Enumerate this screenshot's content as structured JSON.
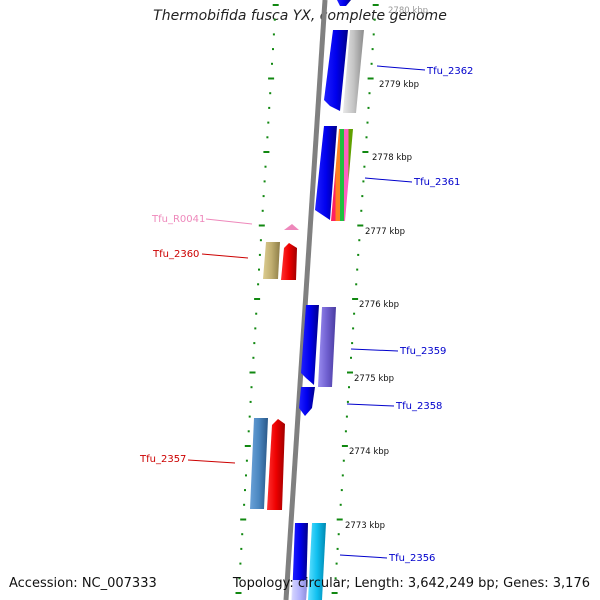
{
  "title": "Thermobifida fusca YX, complete genome",
  "footer": {
    "accession": "Accession: NC_007333",
    "summary": "Topology: circular; Length: 3,642,249 bp; Genes: 3,176"
  },
  "scale_labels": [
    "2780 kbp",
    "2779 kbp",
    "2778 kbp",
    "2777 kbp",
    "2776 kbp",
    "2775 kbp",
    "2774 kbp",
    "2773 kbp"
  ],
  "genes": [
    {
      "name": "Tfu_2362",
      "strand": "+",
      "color": "#0000cc"
    },
    {
      "name": "Tfu_2361",
      "strand": "+",
      "color": "#0000cc"
    },
    {
      "name": "Tfu_R0041",
      "strand": "-",
      "color": "#ee88bb"
    },
    {
      "name": "Tfu_2360",
      "strand": "-",
      "color": "#cc0000"
    },
    {
      "name": "Tfu_2359",
      "strand": "+",
      "color": "#0000cc"
    },
    {
      "name": "Tfu_2358",
      "strand": "+",
      "color": "#0000cc"
    },
    {
      "name": "Tfu_2357",
      "strand": "-",
      "color": "#cc0000"
    },
    {
      "name": "Tfu_2356",
      "strand": "+",
      "color": "#0000cc"
    }
  ],
  "colors": {
    "backbone": "#808080",
    "scale_dots": "#118811",
    "plus_strand": "#0000ff",
    "minus_strand": "#ff0000",
    "rna": "#ee88bb",
    "cog_gray": "#c8c8c8",
    "cog_purple": "#7a68d8",
    "cog_olive": "#c8b87a",
    "cog_steelblue": "#4a86c0",
    "cog_cyan": "#10c8f0",
    "cog_lavender": "#c8c8ff"
  }
}
